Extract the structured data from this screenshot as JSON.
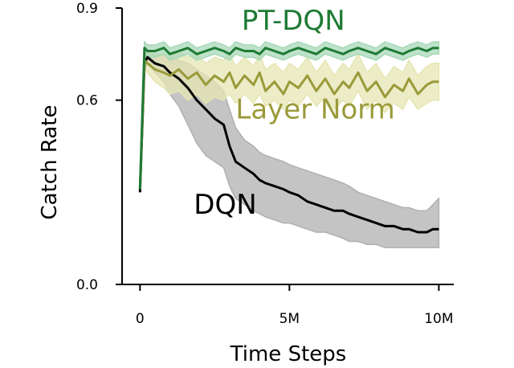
{
  "chart_data": {
    "type": "line",
    "xlabel": "Time Steps",
    "ylabel": "Catch Rate",
    "xlim": [
      -0.6,
      10.5
    ],
    "ylim": [
      0.0,
      0.9
    ],
    "x_ticks": [
      {
        "value": 0,
        "label": "0"
      },
      {
        "value": 5,
        "label": "5M"
      },
      {
        "value": 10,
        "label": "10M"
      }
    ],
    "y_ticks": [
      {
        "value": 0.0,
        "label": "0.0"
      },
      {
        "value": 0.6,
        "label": "0.6"
      },
      {
        "value": 0.9,
        "label": "0.9"
      }
    ],
    "grid": false,
    "series": [
      {
        "name": "DQN",
        "color": "#000000",
        "band_color": "#b0b0b0",
        "label_at": [
          1.8,
          0.23
        ],
        "x": [
          0,
          0.15,
          0.25,
          0.5,
          0.8,
          1.0,
          1.3,
          1.6,
          1.9,
          2.2,
          2.5,
          2.8,
          3.0,
          3.2,
          3.5,
          3.8,
          4.0,
          4.2,
          4.5,
          4.8,
          5.0,
          5.3,
          5.6,
          5.9,
          6.2,
          6.5,
          6.8,
          7.0,
          7.3,
          7.6,
          7.9,
          8.2,
          8.5,
          8.8,
          9.0,
          9.3,
          9.6,
          9.8,
          10.0
        ],
        "values": [
          0.3,
          0.72,
          0.74,
          0.72,
          0.71,
          0.69,
          0.67,
          0.64,
          0.6,
          0.57,
          0.54,
          0.52,
          0.45,
          0.4,
          0.38,
          0.36,
          0.34,
          0.33,
          0.32,
          0.31,
          0.3,
          0.29,
          0.27,
          0.26,
          0.25,
          0.24,
          0.24,
          0.23,
          0.22,
          0.21,
          0.2,
          0.19,
          0.19,
          0.18,
          0.18,
          0.17,
          0.17,
          0.18,
          0.18
        ],
        "lower": [
          0.3,
          0.7,
          0.72,
          0.69,
          0.66,
          0.62,
          0.58,
          0.52,
          0.46,
          0.42,
          0.4,
          0.38,
          0.32,
          0.28,
          0.26,
          0.24,
          0.23,
          0.22,
          0.21,
          0.2,
          0.2,
          0.19,
          0.18,
          0.17,
          0.17,
          0.16,
          0.15,
          0.14,
          0.14,
          0.13,
          0.13,
          0.12,
          0.12,
          0.12,
          0.12,
          0.12,
          0.12,
          0.12,
          0.12
        ],
        "upper": [
          0.3,
          0.74,
          0.76,
          0.75,
          0.75,
          0.74,
          0.73,
          0.72,
          0.7,
          0.68,
          0.66,
          0.63,
          0.57,
          0.51,
          0.47,
          0.45,
          0.43,
          0.42,
          0.41,
          0.4,
          0.39,
          0.38,
          0.37,
          0.36,
          0.35,
          0.34,
          0.33,
          0.32,
          0.3,
          0.29,
          0.28,
          0.27,
          0.26,
          0.25,
          0.25,
          0.24,
          0.24,
          0.26,
          0.28
        ]
      },
      {
        "name": "Layer Norm",
        "color": "#9a9a3a",
        "band_color": "#e6e6b4",
        "label_at": [
          3.2,
          0.54
        ],
        "x": [
          0,
          0.15,
          0.25,
          0.5,
          0.8,
          1.0,
          1.3,
          1.6,
          1.9,
          2.2,
          2.5,
          2.8,
          3.0,
          3.2,
          3.5,
          3.8,
          4.0,
          4.2,
          4.5,
          4.8,
          5.0,
          5.3,
          5.6,
          5.9,
          6.2,
          6.5,
          6.8,
          7.0,
          7.3,
          7.6,
          7.9,
          8.2,
          8.5,
          8.8,
          9.0,
          9.3,
          9.6,
          9.8,
          10.0
        ],
        "values": [
          0.31,
          0.73,
          0.72,
          0.7,
          0.69,
          0.68,
          0.7,
          0.67,
          0.69,
          0.65,
          0.68,
          0.66,
          0.69,
          0.64,
          0.68,
          0.65,
          0.69,
          0.63,
          0.66,
          0.62,
          0.66,
          0.64,
          0.68,
          0.63,
          0.67,
          0.62,
          0.66,
          0.64,
          0.69,
          0.63,
          0.66,
          0.61,
          0.65,
          0.63,
          0.67,
          0.62,
          0.65,
          0.66,
          0.66
        ],
        "lower": [
          0.31,
          0.71,
          0.69,
          0.66,
          0.64,
          0.62,
          0.63,
          0.6,
          0.62,
          0.59,
          0.61,
          0.6,
          0.62,
          0.59,
          0.62,
          0.59,
          0.62,
          0.58,
          0.6,
          0.57,
          0.6,
          0.58,
          0.62,
          0.58,
          0.61,
          0.57,
          0.6,
          0.58,
          0.63,
          0.57,
          0.6,
          0.56,
          0.59,
          0.57,
          0.61,
          0.57,
          0.59,
          0.6,
          0.6
        ],
        "upper": [
          0.31,
          0.76,
          0.76,
          0.75,
          0.75,
          0.74,
          0.76,
          0.74,
          0.75,
          0.72,
          0.74,
          0.73,
          0.75,
          0.71,
          0.74,
          0.71,
          0.75,
          0.7,
          0.72,
          0.69,
          0.72,
          0.7,
          0.74,
          0.69,
          0.73,
          0.68,
          0.72,
          0.7,
          0.75,
          0.69,
          0.72,
          0.67,
          0.71,
          0.69,
          0.73,
          0.68,
          0.71,
          0.72,
          0.72
        ]
      },
      {
        "name": "PT-DQN",
        "color": "#1e7a34",
        "band_color": "#a8d8b8",
        "label_at": [
          3.4,
          0.83
        ],
        "x": [
          0,
          0.15,
          0.25,
          0.5,
          0.8,
          1.0,
          1.3,
          1.6,
          1.9,
          2.2,
          2.5,
          2.8,
          3.0,
          3.2,
          3.5,
          3.8,
          4.0,
          4.2,
          4.5,
          4.8,
          5.0,
          5.3,
          5.6,
          5.9,
          6.2,
          6.5,
          6.8,
          7.0,
          7.3,
          7.6,
          7.9,
          8.2,
          8.5,
          8.8,
          9.0,
          9.3,
          9.6,
          9.8,
          10.0
        ],
        "values": [
          0.31,
          0.77,
          0.76,
          0.76,
          0.77,
          0.75,
          0.76,
          0.77,
          0.75,
          0.76,
          0.77,
          0.76,
          0.75,
          0.77,
          0.76,
          0.76,
          0.75,
          0.77,
          0.76,
          0.75,
          0.76,
          0.77,
          0.76,
          0.75,
          0.77,
          0.76,
          0.75,
          0.76,
          0.77,
          0.76,
          0.75,
          0.77,
          0.76,
          0.75,
          0.76,
          0.77,
          0.76,
          0.77,
          0.77
        ],
        "lower": [
          0.31,
          0.75,
          0.74,
          0.74,
          0.75,
          0.73,
          0.74,
          0.75,
          0.73,
          0.74,
          0.75,
          0.74,
          0.73,
          0.75,
          0.74,
          0.74,
          0.73,
          0.75,
          0.74,
          0.73,
          0.74,
          0.75,
          0.74,
          0.73,
          0.75,
          0.74,
          0.73,
          0.74,
          0.75,
          0.74,
          0.73,
          0.75,
          0.74,
          0.73,
          0.74,
          0.75,
          0.74,
          0.75,
          0.75
        ],
        "upper": [
          0.31,
          0.79,
          0.78,
          0.78,
          0.79,
          0.77,
          0.78,
          0.79,
          0.77,
          0.78,
          0.79,
          0.78,
          0.77,
          0.79,
          0.78,
          0.78,
          0.77,
          0.79,
          0.78,
          0.77,
          0.78,
          0.79,
          0.78,
          0.77,
          0.79,
          0.78,
          0.77,
          0.78,
          0.79,
          0.78,
          0.77,
          0.79,
          0.78,
          0.77,
          0.78,
          0.79,
          0.78,
          0.79,
          0.79
        ]
      }
    ]
  }
}
